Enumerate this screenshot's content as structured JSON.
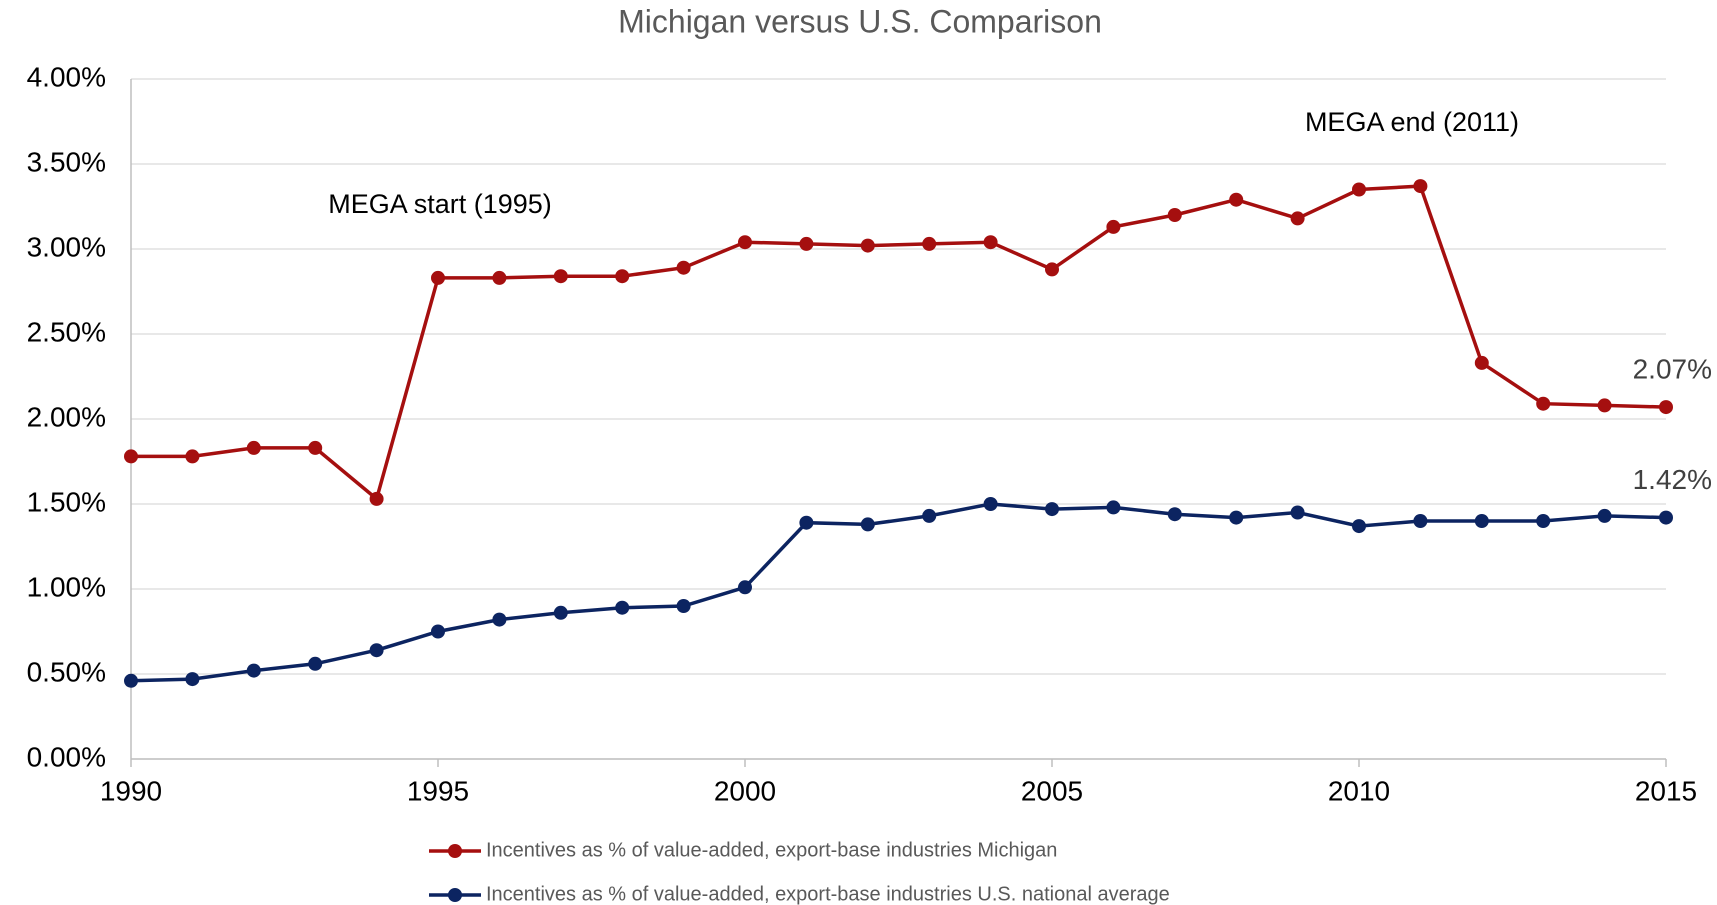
{
  "chart_data": {
    "type": "line",
    "title": "Michigan versus U.S. Comparison",
    "x": [
      1990,
      1991,
      1992,
      1993,
      1994,
      1995,
      1996,
      1997,
      1998,
      1999,
      2000,
      2001,
      2002,
      2003,
      2004,
      2005,
      2006,
      2007,
      2008,
      2009,
      2010,
      2011,
      2012,
      2013,
      2014,
      2015
    ],
    "series": [
      {
        "name": "Incentives as % of value-added, export-base industries Michigan",
        "color": "#a50f0f",
        "values": [
          1.78,
          1.78,
          1.83,
          1.83,
          1.53,
          2.83,
          2.83,
          2.84,
          2.84,
          2.89,
          3.04,
          3.03,
          3.02,
          3.03,
          3.04,
          2.88,
          3.13,
          3.2,
          3.29,
          3.18,
          3.35,
          3.37,
          2.33,
          2.09,
          2.08,
          2.07
        ],
        "value_labels": [
          null,
          null,
          null,
          null,
          null,
          null,
          null,
          null,
          null,
          null,
          null,
          null,
          null,
          null,
          null,
          null,
          null,
          null,
          null,
          null,
          null,
          null,
          null,
          null,
          null,
          "2.07%"
        ]
      },
      {
        "name": "Incentives as % of value-added, export-base industries U.S. national average",
        "color": "#0c2461",
        "values": [
          0.46,
          0.47,
          0.52,
          0.56,
          0.64,
          0.75,
          0.82,
          0.86,
          0.89,
          0.9,
          1.01,
          1.39,
          1.38,
          1.43,
          1.5,
          1.47,
          1.48,
          1.44,
          1.42,
          1.45,
          1.37,
          1.4,
          1.4,
          1.4,
          1.43,
          1.42
        ],
        "value_labels": [
          null,
          null,
          null,
          null,
          null,
          null,
          null,
          null,
          null,
          null,
          null,
          null,
          null,
          null,
          null,
          null,
          null,
          null,
          null,
          null,
          null,
          null,
          null,
          null,
          null,
          "1.42%"
        ]
      }
    ],
    "annotations": [
      "MEGA start (1995)",
      "MEGA end (2011)"
    ],
    "xlim": [
      1990,
      2015
    ],
    "xticks": [
      1990,
      1995,
      2000,
      2005,
      2010,
      2015
    ],
    "ylim": [
      0,
      4
    ],
    "yticks": [
      {
        "value": 0,
        "label": "0.00%"
      },
      {
        "value": 0.5,
        "label": "0.50%"
      },
      {
        "value": 1,
        "label": "1.00%"
      },
      {
        "value": 1.5,
        "label": "1.50%"
      },
      {
        "value": 2,
        "label": "2.00%"
      },
      {
        "value": 2.5,
        "label": "2.50%"
      },
      {
        "value": 3,
        "label": "3.00%"
      },
      {
        "value": 3.5,
        "label": "3.50%"
      },
      {
        "value": 4,
        "label": "4.00%"
      }
    ],
    "grid": true,
    "legend": "bottom"
  }
}
